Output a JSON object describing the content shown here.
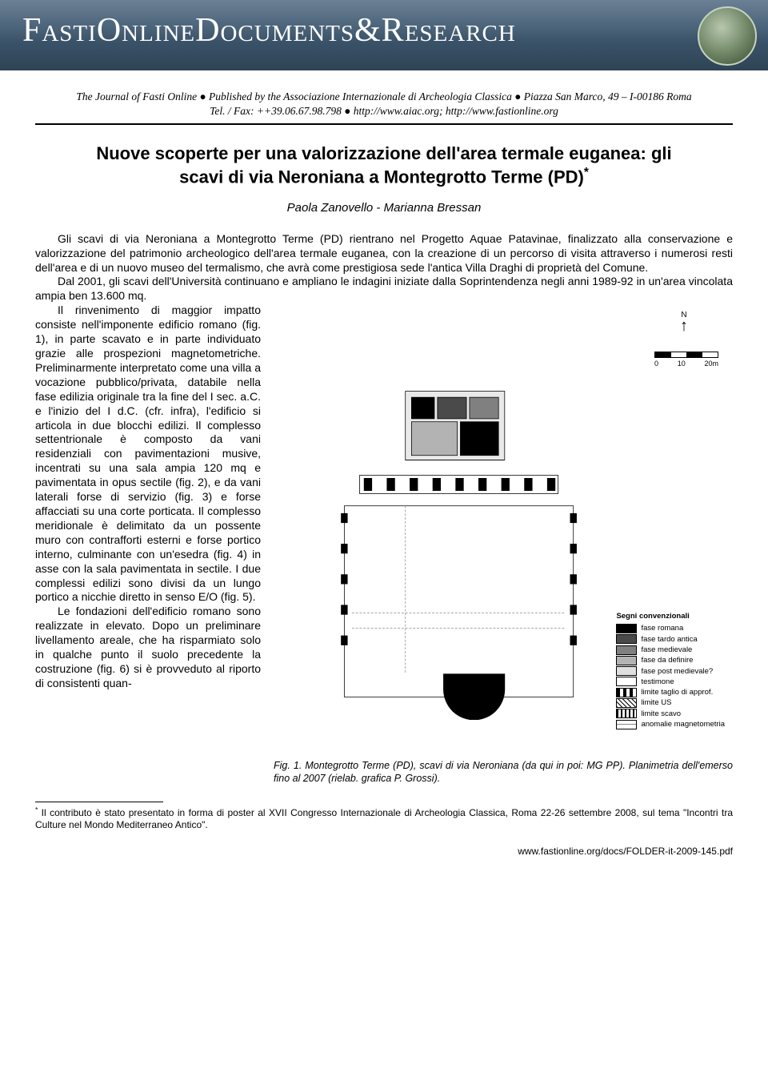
{
  "banner": {
    "title_plain": "FastiOnlineDocuments&Research"
  },
  "header": {
    "line1": "The Journal of Fasti Online ● Published by the Associazione Internazionale di Archeologia Classica ● Piazza San Marco, 49 – I-00186 Roma",
    "line2": "Tel. / Fax: ++39.06.67.98.798 ● http://www.aiac.org; http://www.fastionline.org"
  },
  "title": {
    "main": "Nuove scoperte per una valorizzazione dell'area termale euganea: gli scavi di via Neroniana a Montegrotto Terme (PD)",
    "sup": "*"
  },
  "authors": "Paola Zanovello - Marianna Bressan",
  "paragraphs": {
    "p1": "Gli scavi di via Neroniana a Montegrotto Terme (PD) rientrano nel Progetto Aquae Patavinae, finalizzato alla conservazione e valorizzazione del patrimonio archeologico dell'area termale euganea, con la creazione di un percorso di visita attraverso i numerosi resti dell'area e di un nuovo museo del termalismo, che avrà come prestigiosa sede l'antica Villa Draghi di proprietà del Comune.",
    "p2": "Dal 2001, gli scavi dell'Università continuano e ampliano le indagini iniziate dalla Soprintendenza negli anni 1989-92 in un'area vincolata ampia ben 13.600 mq.",
    "p3": "Il rinvenimento di maggior impatto consiste nell'imponente edificio romano (fig. 1), in parte scavato e in parte individuato grazie alle prospezioni magnetometriche. Preliminarmente interpretato come una villa a vocazione pubblico/privata, databile nella fase edilizia originale tra la fine del I sec. a.C. e l'inizio del I d.C. (cfr. infra), l'edificio si articola in due blocchi edilizi. Il complesso settentrionale è composto da vani residenziali con pavimentazioni musive, incentrati su una sala ampia 120 mq e pavimentata in opus sectile (fig. 2), e da vani laterali forse di servizio (fig. 3) e forse affacciati su una corte porticata. Il complesso meridionale è delimitato da un possente muro con contrafforti esterni e forse portico interno, culminante con un'esedra (fig. 4) in asse con la sala pavimentata in sectile. I due complessi edilizi sono divisi da un lungo portico a nicchie diretto in senso E/O (fig. 5).",
    "p4": "Le fondazioni dell'edificio romano sono realizzate in elevato. Dopo un preliminare livellamento areale, che ha risparmiato solo in qualche punto il suolo precedente la costruzione (fig. 6) si è provveduto al riporto di consistenti quan-"
  },
  "figure": {
    "compass": "N",
    "scale_labels": [
      "0",
      "10",
      "20m"
    ],
    "legend_title": "Segni convenzionali",
    "legend_items": [
      {
        "label": "fase romana",
        "fill": "#000000"
      },
      {
        "label": "fase tardo antica",
        "fill": "#4a4a4a"
      },
      {
        "label": "fase medievale",
        "fill": "#808080"
      },
      {
        "label": "fase da definire",
        "fill": "#b3b3b3"
      },
      {
        "label": "fase post medievale?",
        "fill": "#e0e0e0"
      },
      {
        "label": "testimone",
        "fill": "#ffffff"
      },
      {
        "label": "limite taglio di approf.",
        "pattern": "dash-thick"
      },
      {
        "label": "limite US",
        "pattern": "hatch"
      },
      {
        "label": "limite scavo",
        "pattern": "dash"
      },
      {
        "label": "anomalie magnetometria",
        "pattern": "line"
      }
    ],
    "caption": "Fig. 1. Montegrotto Terme (PD), scavi di via Neroniana (da qui in poi: MG PP). Planimetria dell'emerso fino al 2007 (rielab. grafica P. Grossi)."
  },
  "footnote": {
    "marker": "*",
    "text": " Il contributo è stato presentato in forma di poster al XVII Congresso Internazionale di Archeologia Classica, Roma 22-26 settembre 2008, sul tema \"Incontri tra Culture nel Mondo Mediterraneo Antico\"."
  },
  "footer": {
    "url": "www.fastionline.org/docs/FOLDER-it-2009-145.pdf"
  }
}
